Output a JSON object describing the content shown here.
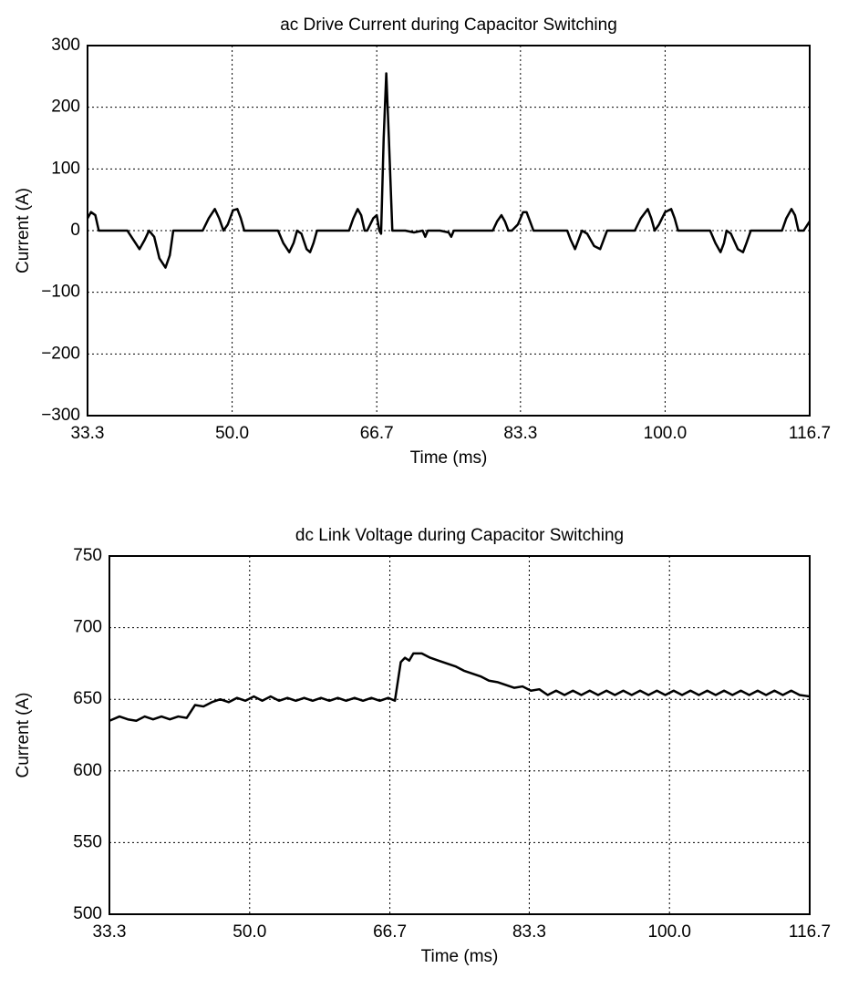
{
  "chart_data": [
    {
      "type": "line",
      "title": "ac Drive Current during Capacitor Switching",
      "x_label": "Time (ms)",
      "y_label": "Current (A)",
      "color": "#000000",
      "grid": true,
      "xlim": [
        33.3,
        116.7
      ],
      "ylim": [
        -300,
        300
      ],
      "xticks": [
        33.3,
        {
          "value": 50,
          "label": "50.0"
        },
        66.7,
        83.3,
        {
          "value": 100,
          "label": "100.0"
        },
        116.7
      ],
      "yticks": [
        {
          "value": -300,
          "label": "−300"
        },
        {
          "value": -200,
          "label": "−200"
        },
        {
          "value": -100,
          "label": "−100"
        },
        0,
        100,
        200,
        300
      ],
      "x": [
        33.3,
        33.7,
        34.2,
        34.6,
        37.9,
        38.6,
        39.3,
        39.9,
        40.4,
        41.0,
        41.6,
        42.3,
        42.8,
        43.2,
        46.6,
        47.3,
        48.0,
        48.5,
        49.0,
        49.5,
        50.1,
        50.6,
        51.0,
        51.4,
        55.3,
        55.9,
        56.6,
        57.1,
        57.5,
        58.0,
        58.6,
        59.0,
        59.4,
        59.8,
        63.5,
        64.0,
        64.5,
        64.9,
        65.3,
        65.6,
        66.3,
        66.7,
        67.0,
        67.2,
        67.5,
        67.8,
        68.1,
        68.5,
        70,
        71,
        72.0,
        72.3,
        72.6,
        74,
        75.0,
        75.3,
        75.6,
        80.1,
        80.6,
        81.1,
        81.5,
        81.9,
        82.3,
        83.0,
        83.6,
        84.0,
        84.4,
        84.8,
        88.7,
        89.1,
        89.6,
        90.0,
        90.4,
        91.0,
        91.8,
        92.5,
        92.9,
        93.3,
        96.5,
        97.2,
        98.0,
        98.4,
        98.8,
        99.3,
        100.0,
        100.7,
        101.1,
        101.5,
        105.2,
        105.8,
        106.4,
        106.8,
        107.1,
        107.6,
        108.4,
        109.0,
        109.4,
        109.9,
        113.5,
        114.0,
        114.6,
        115.0,
        115.4,
        116.0,
        116.7
      ],
      "values": [
        20,
        30,
        25,
        0,
        0,
        -15,
        -30,
        -15,
        0,
        -10,
        -45,
        -60,
        -40,
        0,
        0,
        20,
        35,
        20,
        0,
        10,
        33,
        35,
        20,
        0,
        0,
        -20,
        -35,
        -20,
        0,
        -5,
        -30,
        -35,
        -20,
        0,
        0,
        20,
        35,
        25,
        0,
        0,
        20,
        25,
        0,
        -5,
        150,
        255,
        150,
        0,
        0,
        -3,
        0,
        -10,
        0,
        0,
        -3,
        -10,
        0,
        0,
        15,
        25,
        15,
        0,
        0,
        10,
        30,
        30,
        15,
        0,
        0,
        -15,
        -30,
        -15,
        0,
        -5,
        -25,
        -30,
        -15,
        0,
        0,
        20,
        35,
        20,
        0,
        10,
        30,
        35,
        20,
        0,
        0,
        -20,
        -35,
        -20,
        0,
        -5,
        -30,
        -35,
        -20,
        0,
        0,
        20,
        35,
        25,
        0,
        0,
        15
      ]
    },
    {
      "type": "line",
      "title": "dc Link Voltage during Capacitor Switching",
      "x_label": "Time (ms)",
      "y_label": "Current (A)",
      "color": "#000000",
      "grid": true,
      "xlim": [
        33.3,
        116.7
      ],
      "ylim": [
        500,
        750
      ],
      "xticks": [
        33.3,
        {
          "value": 50,
          "label": "50.0"
        },
        66.7,
        83.3,
        {
          "value": 100,
          "label": "100.0"
        },
        116.7
      ],
      "yticks": [
        500,
        550,
        600,
        650,
        700,
        750
      ],
      "x": [
        33.3,
        34.5,
        35.5,
        36.5,
        37.5,
        38.5,
        39.5,
        40.5,
        41.5,
        42.5,
        43.5,
        44.5,
        45.5,
        46.5,
        47.5,
        48.5,
        49.5,
        50.5,
        51.5,
        52.5,
        53.5,
        54.5,
        55.5,
        56.5,
        57.5,
        58.5,
        59.5,
        60.5,
        61.5,
        62.5,
        63.5,
        64.5,
        65.5,
        66.5,
        67.3,
        68.0,
        68.5,
        69.0,
        69.5,
        70.5,
        71.5,
        72.5,
        73.5,
        74.5,
        75.5,
        76.5,
        77.5,
        78.5,
        79.5,
        80.5,
        81.5,
        82.5,
        83.5,
        84.5,
        85.5,
        86.5,
        87.5,
        88.5,
        89.5,
        90.5,
        91.5,
        92.5,
        93.5,
        94.5,
        95.5,
        96.5,
        97.5,
        98.5,
        99.5,
        100.5,
        101.5,
        102.5,
        103.5,
        104.5,
        105.5,
        106.5,
        107.5,
        108.5,
        109.5,
        110.5,
        111.5,
        112.5,
        113.5,
        114.5,
        115.5,
        116.7
      ],
      "values": [
        635,
        638,
        636,
        635,
        638,
        636,
        638,
        636,
        638,
        637,
        646,
        645,
        648,
        650,
        648,
        651,
        649,
        652,
        649,
        652,
        649,
        651,
        649,
        651,
        649,
        651,
        649,
        651,
        649,
        651,
        649,
        651,
        649,
        651,
        649,
        676,
        679,
        677,
        682,
        682,
        679,
        677,
        675,
        673,
        670,
        668,
        666,
        663,
        662,
        660,
        658,
        659,
        656,
        657,
        653,
        656,
        653,
        656,
        653,
        656,
        653,
        656,
        653,
        656,
        653,
        656,
        653,
        656,
        653,
        656,
        653,
        656,
        653,
        656,
        653,
        656,
        653,
        656,
        653,
        656,
        653,
        656,
        653,
        656,
        653,
        652
      ]
    }
  ]
}
